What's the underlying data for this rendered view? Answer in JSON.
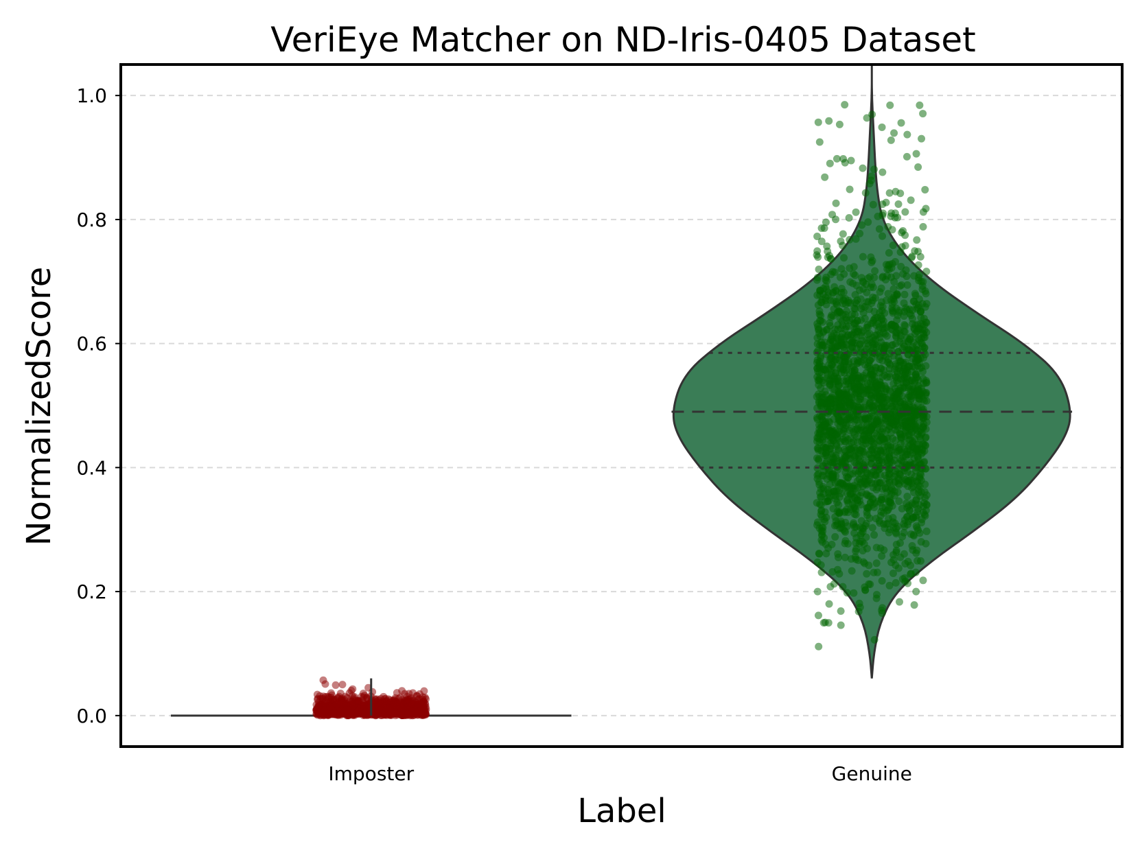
{
  "chart_data": {
    "type": "violin",
    "title": "VeriEye Matcher on ND-Iris-0405 Dataset",
    "xlabel": "Label",
    "ylabel": "NormalizedScore",
    "categories": [
      "Imposter",
      "Genuine"
    ],
    "ylim": [
      -0.05,
      1.05
    ],
    "yticks": [
      0.0,
      0.2,
      0.4,
      0.6,
      0.8,
      1.0
    ],
    "ytick_labels": [
      "0.0",
      "0.2",
      "0.4",
      "0.6",
      "0.8",
      "1.0"
    ],
    "grid": "y dashed",
    "legend": "none",
    "series": [
      {
        "category": "Imposter",
        "violin_color": "#3a7d56",
        "point_color": "#8b0000",
        "min": 0.0,
        "max": 0.06,
        "quartiles": [
          0.0,
          0.0,
          0.0
        ],
        "points_range": [
          0.0,
          0.06
        ]
      },
      {
        "category": "Genuine",
        "violin_color": "#3a7d56",
        "point_color": "#006400",
        "min": 0.06,
        "max": 1.0,
        "quartiles": [
          0.4,
          0.49,
          0.585
        ],
        "points_range": [
          0.1,
          1.0
        ],
        "density_profile": [
          [
            0.06,
            0.0
          ],
          [
            0.1,
            0.01
          ],
          [
            0.15,
            0.04
          ],
          [
            0.2,
            0.12
          ],
          [
            0.25,
            0.3
          ],
          [
            0.3,
            0.52
          ],
          [
            0.35,
            0.72
          ],
          [
            0.4,
            0.86
          ],
          [
            0.45,
            0.97
          ],
          [
            0.49,
            1.0
          ],
          [
            0.55,
            0.94
          ],
          [
            0.6,
            0.76
          ],
          [
            0.65,
            0.52
          ],
          [
            0.7,
            0.3
          ],
          [
            0.75,
            0.14
          ],
          [
            0.8,
            0.05
          ],
          [
            0.85,
            0.025
          ],
          [
            0.9,
            0.015
          ],
          [
            0.95,
            0.008
          ],
          [
            1.0,
            0.0
          ],
          [
            1.05,
            0.0
          ]
        ]
      }
    ]
  }
}
